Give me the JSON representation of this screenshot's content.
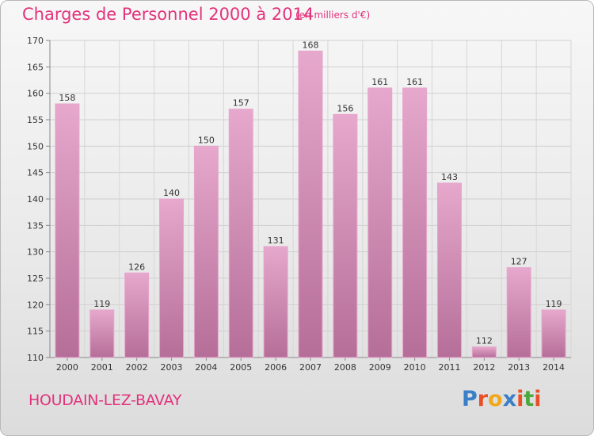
{
  "header": {
    "title": "Charges de Personnel 2000 à 2014",
    "subtitle": "(en milliers d'€)"
  },
  "footer": {
    "commune": "HOUDAIN-LEZ-BAVAY",
    "logo_text": "Proxiti",
    "logo_colors": [
      "#3a7fc8",
      "#e8502a",
      "#f0a81c",
      "#3a7fc8",
      "#e8502a",
      "#4aa83c",
      "#e8502a"
    ]
  },
  "colors": {
    "bar_fill": "#d68cb6",
    "bar_stroke": "#e6a6cc",
    "title": "#e2337c"
  },
  "chart_data": {
    "type": "bar",
    "categories": [
      "2000",
      "2001",
      "2002",
      "2003",
      "2004",
      "2005",
      "2006",
      "2007",
      "2008",
      "2009",
      "2010",
      "2011",
      "2012",
      "2013",
      "2014"
    ],
    "values": [
      158,
      119,
      126,
      140,
      150,
      157,
      131,
      168,
      156,
      161,
      161,
      143,
      112,
      127,
      119
    ],
    "ylim": [
      110,
      170
    ],
    "yticks": [
      110,
      115,
      120,
      125,
      130,
      135,
      140,
      145,
      150,
      155,
      160,
      165,
      170
    ],
    "grid": true
  }
}
